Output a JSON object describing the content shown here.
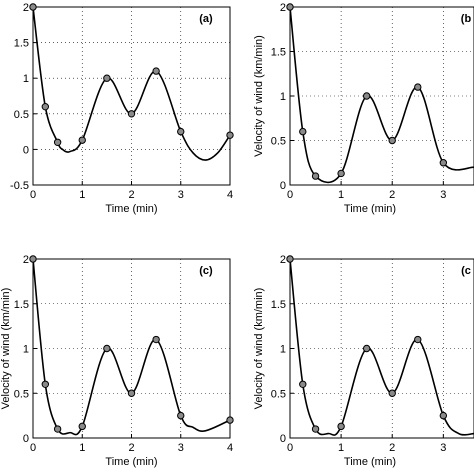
{
  "chart_data": [
    {
      "type": "line",
      "panel_label": "(a)",
      "xlabel": "Time (min)",
      "ylabel": "",
      "xlim": [
        0,
        4
      ],
      "ylim": [
        -0.5,
        2
      ],
      "xticks": [
        "0",
        "1",
        "2",
        "3",
        "4"
      ],
      "yticks": [
        "-0.5",
        "0",
        "0.5",
        "1",
        "1.5",
        "2"
      ],
      "grid": true,
      "markers": {
        "x": [
          0,
          0.25,
          0.5,
          1,
          1.5,
          2,
          2.5,
          3,
          4
        ],
        "y": [
          2,
          0.6,
          0.1,
          0.13,
          1,
          0.5,
          1.1,
          0.25,
          0.2
        ]
      },
      "curve": {
        "x": [
          0,
          0.25,
          0.5,
          0.6,
          0.75,
          1,
          1.5,
          2,
          2.5,
          3,
          3.25,
          3.5,
          3.75,
          4
        ],
        "y": [
          2,
          0.6,
          0.1,
          0,
          -0.03,
          0.13,
          1,
          0.5,
          1.1,
          0.25,
          -0.05,
          -0.15,
          -0.05,
          0.2
        ]
      }
    },
    {
      "type": "line",
      "panel_label": "(b",
      "xlabel": "Time (min)",
      "ylabel": "Velocity of wind (km/min)",
      "xlim": [
        0,
        3.6
      ],
      "ylim": [
        0,
        2
      ],
      "xticks": [
        "0",
        "1",
        "2",
        "3"
      ],
      "yticks": [
        "0",
        "0.5",
        "1",
        "1.5",
        "2"
      ],
      "grid": true,
      "markers": {
        "x": [
          0,
          0.25,
          0.5,
          1,
          1.5,
          2,
          2.5,
          3
        ],
        "y": [
          2,
          0.6,
          0.1,
          0.13,
          1,
          0.5,
          1.1,
          0.25
        ]
      },
      "curve": {
        "x": [
          0,
          0.25,
          0.5,
          1,
          1.5,
          2,
          2.5,
          3,
          3.6
        ],
        "y": [
          2,
          0.6,
          0.1,
          0.13,
          1,
          0.5,
          1.1,
          0.25,
          0.2
        ]
      }
    },
    {
      "type": "line",
      "panel_label": "(c)",
      "xlabel": "Time (min)",
      "ylabel": "Velocity of wind (km/min)",
      "xlim": [
        0,
        4
      ],
      "ylim": [
        0,
        2
      ],
      "xticks": [
        "0",
        "1",
        "2",
        "3",
        "4"
      ],
      "yticks": [
        "0",
        "0.5",
        "1",
        "1.5",
        "2"
      ],
      "grid": true,
      "markers": {
        "x": [
          0,
          0.25,
          0.5,
          1,
          1.5,
          2,
          2.5,
          3,
          4
        ],
        "y": [
          2,
          0.6,
          0.1,
          0.13,
          1,
          0.5,
          1.1,
          0.25,
          0.2
        ]
      },
      "curve": {
        "x": [
          0,
          0.25,
          0.5,
          0.75,
          1,
          1.5,
          2,
          2.5,
          3,
          3.25,
          3.5,
          4
        ],
        "y": [
          2,
          0.6,
          0.1,
          0.06,
          0.13,
          1,
          0.5,
          1.1,
          0.25,
          0.12,
          0.08,
          0.2
        ]
      }
    },
    {
      "type": "line",
      "panel_label": "(c",
      "xlabel": "Time (min)",
      "ylabel": "Velocity of wind (km/min)",
      "xlim": [
        0,
        3.6
      ],
      "ylim": [
        0,
        2
      ],
      "xticks": [
        "0",
        "1",
        "2",
        "3"
      ],
      "yticks": [
        "0",
        "0.5",
        "1",
        "1.5",
        "2"
      ],
      "grid": true,
      "markers": {
        "x": [
          0,
          0.25,
          0.5,
          1,
          1.5,
          2,
          2.5,
          3
        ],
        "y": [
          2,
          0.6,
          0.1,
          0.13,
          1,
          0.5,
          1.1,
          0.25
        ]
      },
      "curve": {
        "x": [
          0,
          0.25,
          0.5,
          0.75,
          1,
          1.5,
          2,
          2.5,
          3,
          3.3,
          3.6
        ],
        "y": [
          2,
          0.6,
          0.1,
          0.05,
          0.13,
          1,
          0.5,
          1.1,
          0.25,
          0.05,
          0.05
        ]
      }
    }
  ]
}
